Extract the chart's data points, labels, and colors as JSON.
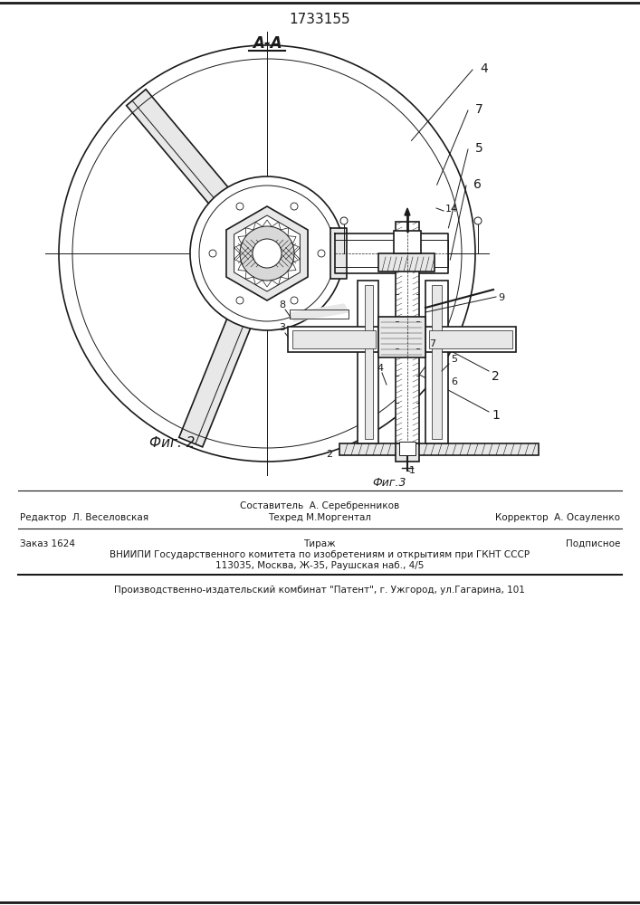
{
  "patent_number": "1733155",
  "section_label": "А-А",
  "fig2_label": "Фиг. 2",
  "fig3_label": "Фиг.3",
  "footer_line0_mid": "Составитель  А. Серебренников",
  "footer_line1_left": "Редактор  Л. Веселовская",
  "footer_line1_mid": "Техред М.Моргентал",
  "footer_line1_right": "Корректор  А. Осауленко",
  "footer_line2_left": "Заказ 1624",
  "footer_line2_mid": "Тираж",
  "footer_line2_right": "Подписное",
  "footer_line3": "ВНИИПИ Государственного комитета по изобретениям и открытиям при ГКНТ СССР",
  "footer_line4": "113035, Москва, Ж-35, Раушская наб., 4/5",
  "footer_line5": "Производственно-издательский комбинат \"Патент\", г. Ужгород, ул.Гагарина, 101",
  "bg_color": "#ffffff",
  "line_color": "#1a1a1a",
  "fill_light": "#e8e8e8",
  "fill_dark": "#c0c0c0",
  "fill_hatch": "#d8d8d8"
}
